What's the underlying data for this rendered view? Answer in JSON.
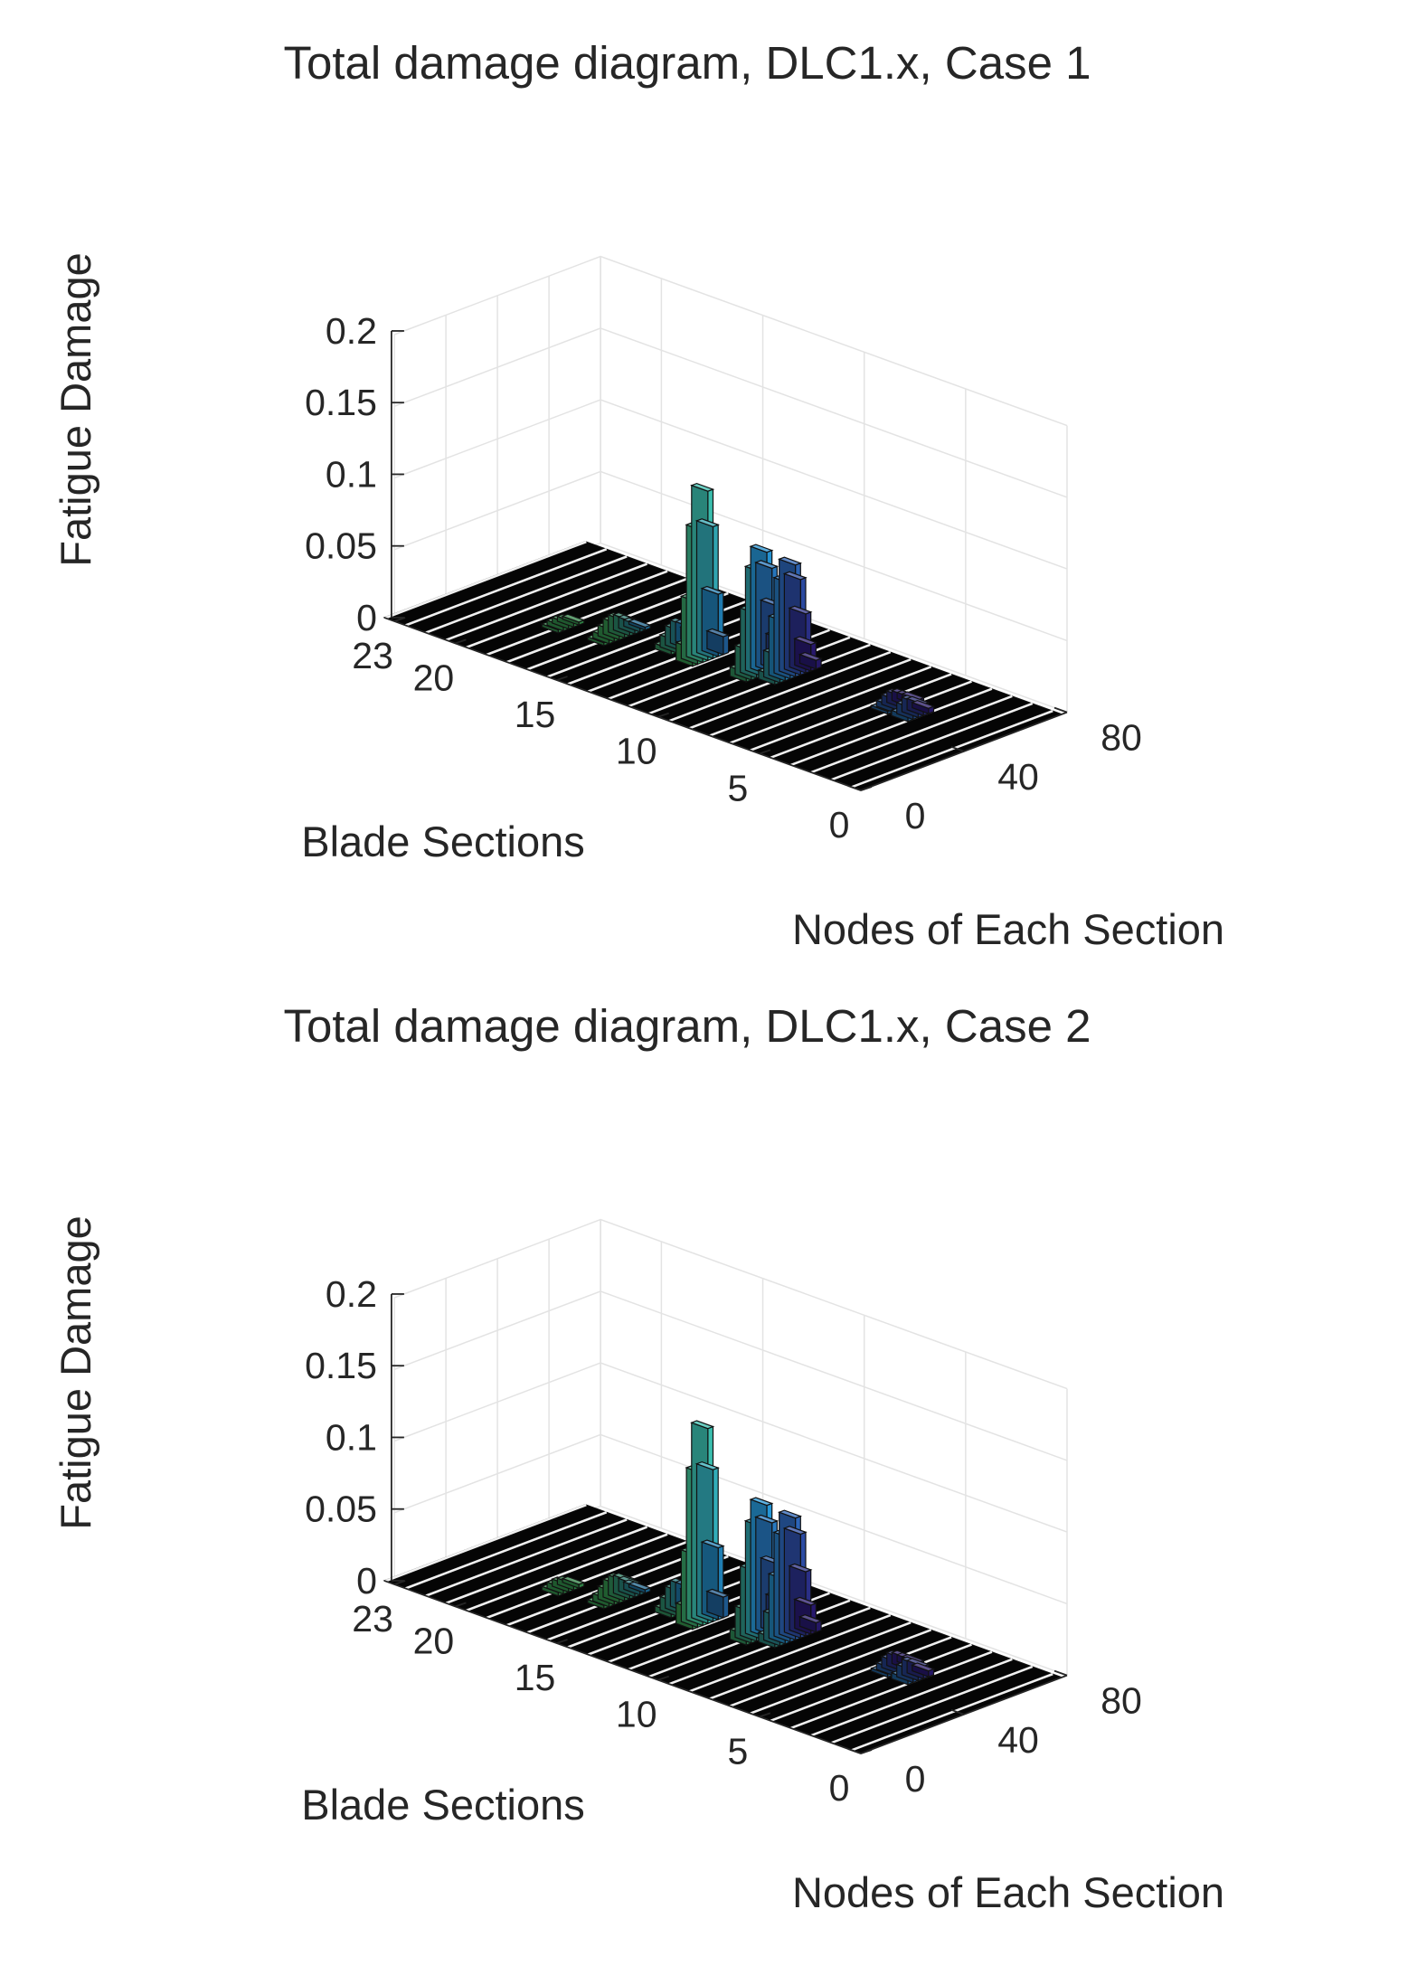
{
  "charts": [
    {
      "type": "bar3",
      "title": "Total damage diagram, DLC1.x, Case 1",
      "zlabel": "Fatigue Damage",
      "xlabel": "Blade Sections",
      "ylabel": "Nodes of Each Section",
      "z_ticks": [
        "0",
        "0.05",
        "0.1",
        "0.15",
        "0.2"
      ],
      "x_ticks": [
        "23",
        "20",
        "15",
        "10",
        "5",
        "0"
      ],
      "y_ticks": [
        "0",
        "40",
        "80"
      ],
      "colors": {
        "low": "#3d26a8",
        "mid": "#2aa7ee",
        "high": "#4bd56e",
        "top": "#9ce34f"
      },
      "peaks": [
        {
          "section": 12.9,
          "node": 40,
          "damage": 0.118,
          "width": 4
        },
        {
          "section": 10.5,
          "node": 44,
          "damage": 0.085,
          "width": 5
        },
        {
          "section": 9.6,
          "node": 48,
          "damage": 0.078,
          "width": 5
        },
        {
          "section": 16.5,
          "node": 36,
          "damage": 0.012,
          "width": 6
        },
        {
          "section": 14.2,
          "node": 42,
          "damage": 0.016,
          "width": 5
        },
        {
          "section": 4.8,
          "node": 52,
          "damage": 0.008,
          "width": 5
        },
        {
          "section": 3.8,
          "node": 50,
          "damage": 0.01,
          "width": 4
        },
        {
          "section": 18.5,
          "node": 30,
          "damage": 0.004,
          "width": 5
        }
      ]
    },
    {
      "type": "bar3",
      "title": "Total damage diagram, DLC1.x, Case 2",
      "zlabel": "Fatigue Damage",
      "xlabel": "Blade Sections",
      "ylabel": "Nodes of Each Section",
      "z_ticks": [
        "0",
        "0.05",
        "0.1",
        "0.15",
        "0.2"
      ],
      "x_ticks": [
        "23",
        "20",
        "15",
        "10",
        "5",
        "0"
      ],
      "y_ticks": [
        "0",
        "40",
        "80"
      ],
      "colors": {
        "low": "#3d26a8",
        "mid": "#2aa7ee",
        "high": "#4bd56e",
        "top": "#9ce34f"
      },
      "peaks": [
        {
          "section": 12.9,
          "node": 40,
          "damage": 0.136,
          "width": 4
        },
        {
          "section": 10.5,
          "node": 44,
          "damage": 0.092,
          "width": 5
        },
        {
          "section": 9.6,
          "node": 48,
          "damage": 0.085,
          "width": 5
        },
        {
          "section": 16.5,
          "node": 36,
          "damage": 0.014,
          "width": 6
        },
        {
          "section": 14.2,
          "node": 42,
          "damage": 0.018,
          "width": 5
        },
        {
          "section": 4.8,
          "node": 52,
          "damage": 0.009,
          "width": 5
        },
        {
          "section": 3.8,
          "node": 50,
          "damage": 0.011,
          "width": 4
        },
        {
          "section": 18.5,
          "node": 30,
          "damage": 0.005,
          "width": 5
        }
      ]
    }
  ],
  "chart_data": [
    {
      "type": "bar",
      "subtype": "3d-bar",
      "title": "Total damage diagram, DLC1.x, Case 1",
      "xlabel": "Blade Sections",
      "ylabel": "Nodes of Each Section",
      "zlabel": "Fatigue Damage",
      "xlim": [
        0,
        23
      ],
      "ylim": [
        0,
        80
      ],
      "zlim": [
        0,
        0.2
      ],
      "grid": true,
      "peak_summary": [
        {
          "blade_section": 13,
          "node": 40,
          "fatigue_damage": 0.118
        },
        {
          "blade_section": 10.5,
          "node": 44,
          "fatigue_damage": 0.085
        },
        {
          "blade_section": 9.6,
          "node": 48,
          "fatigue_damage": 0.078
        }
      ]
    },
    {
      "type": "bar",
      "subtype": "3d-bar",
      "title": "Total damage diagram, DLC1.x, Case 2",
      "xlabel": "Blade Sections",
      "ylabel": "Nodes of Each Section",
      "zlabel": "Fatigue Damage",
      "xlim": [
        0,
        23
      ],
      "ylim": [
        0,
        80
      ],
      "zlim": [
        0,
        0.2
      ],
      "grid": true,
      "peak_summary": [
        {
          "blade_section": 13,
          "node": 40,
          "fatigue_damage": 0.136
        },
        {
          "blade_section": 10.5,
          "node": 44,
          "fatigue_damage": 0.092
        },
        {
          "blade_section": 9.6,
          "node": 48,
          "fatigue_damage": 0.085
        }
      ]
    }
  ]
}
